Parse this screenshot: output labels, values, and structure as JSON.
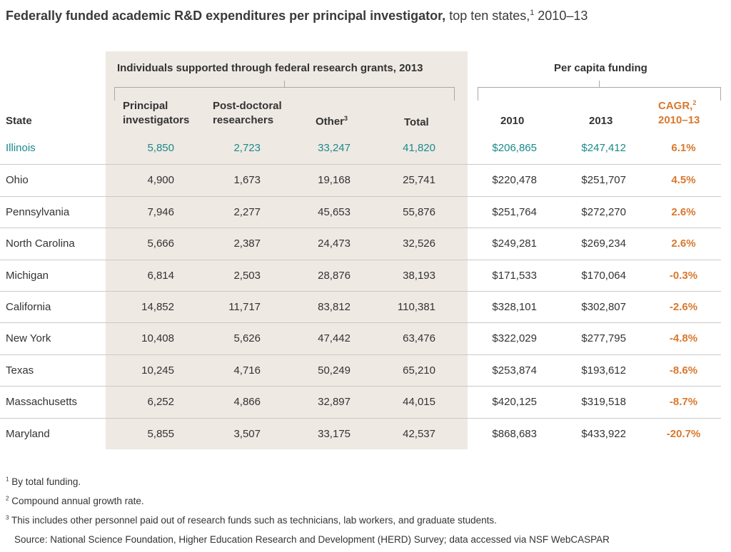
{
  "title": {
    "main": "Federally funded academic R&D expenditures per principal investigator,",
    "sub": " top ten states,",
    "sub_sup": "1",
    "sub_tail": " 2010–13"
  },
  "groups": {
    "individuals": "Individuals supported through federal research grants, 2013",
    "per_capita": "Per capita funding"
  },
  "headers": {
    "state": "State",
    "pi": [
      "Principal",
      "investigators"
    ],
    "postdoc": [
      "Post-doctoral",
      "researchers"
    ],
    "other": "Other",
    "other_sup": "3",
    "total": "Total",
    "y2010": "2010",
    "y2013": "2013",
    "cagr": "CAGR,",
    "cagr_sup": "2",
    "cagr_years": "2010–13"
  },
  "colors": {
    "highlight": "#1a8a8a",
    "cagr": "#d9782d",
    "shade": "#efe9e4"
  },
  "chart_data": {
    "type": "table",
    "columns": [
      "State",
      "Principal investigators",
      "Post-doctoral researchers",
      "Other",
      "Total",
      "2010",
      "2013",
      "CAGR, 2010–13"
    ],
    "rows": [
      [
        "Illinois",
        "5,850",
        "2,723",
        "33,247",
        "41,820",
        "$206,865",
        "$247,412",
        "6.1%"
      ],
      [
        "Ohio",
        "4,900",
        "1,673",
        "19,168",
        "25,741",
        "$220,478",
        "$251,707",
        "4.5%"
      ],
      [
        "Pennsylvania",
        "7,946",
        "2,277",
        "45,653",
        "55,876",
        "$251,764",
        "$272,270",
        "2.6%"
      ],
      [
        "North Carolina",
        "5,666",
        "2,387",
        "24,473",
        "32,526",
        "$249,281",
        "$269,234",
        "2.6%"
      ],
      [
        "Michigan",
        "6,814",
        "2,503",
        "28,876",
        "38,193",
        "$171,533",
        "$170,064",
        "-0.3%"
      ],
      [
        "California",
        "14,852",
        "11,717",
        "83,812",
        "110,381",
        "$328,101",
        "$302,807",
        "-2.6%"
      ],
      [
        "New York",
        "10,408",
        "5,626",
        "47,442",
        "63,476",
        "$322,029",
        "$277,795",
        "-4.8%"
      ],
      [
        "Texas",
        "10,245",
        "4,716",
        "50,249",
        "65,210",
        "$253,874",
        "$193,612",
        "-8.6%"
      ],
      [
        "Massachusetts",
        "6,252",
        "4,866",
        "32,897",
        "44,015",
        "$420,125",
        "$319,518",
        "-8.7%"
      ],
      [
        "Maryland",
        "5,855",
        "3,507",
        "33,175",
        "42,537",
        "$868,683",
        "$433,922",
        "-20.7%"
      ]
    ],
    "highlight_row": "Illinois"
  },
  "footnotes": [
    {
      "num": "1",
      "text": " By total funding."
    },
    {
      "num": "2",
      "text": " Compound annual growth rate."
    },
    {
      "num": "3",
      "text": " This includes other personnel paid out of research funds such as technicians, lab workers, and graduate students."
    }
  ],
  "source": "Source: National Science Foundation, Higher Education Research and Development (HERD) Survey; data accessed via NSF WebCASPAR"
}
